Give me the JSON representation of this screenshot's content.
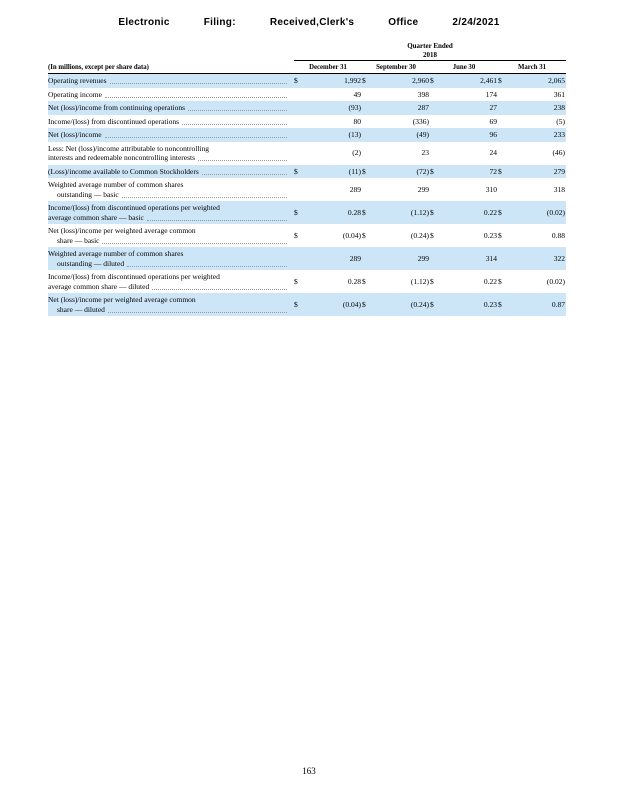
{
  "colors": {
    "row_shade": "#cde6f7",
    "rule": "#000000"
  },
  "stamp": {
    "parts": [
      "Electronic",
      "Filing:",
      "Received,Clerk's",
      "Office",
      "2/24/2021"
    ]
  },
  "table": {
    "title": "Quarter Ended",
    "year": "2018",
    "label_header": "(In millions, except per share data)",
    "columns": [
      "December 31",
      "September 30",
      "June 30",
      "March 31"
    ],
    "rows": [
      {
        "shaded": true,
        "dollar": true,
        "indent2": false,
        "lines": [
          "Operating revenues"
        ],
        "values": [
          "1,992",
          "2,960",
          "2,461",
          "2,065"
        ]
      },
      {
        "shaded": false,
        "dollar": false,
        "indent2": false,
        "lines": [
          "Operating income"
        ],
        "values": [
          "49",
          "398",
          "174",
          "361"
        ]
      },
      {
        "shaded": true,
        "dollar": false,
        "indent2": false,
        "lines": [
          "Net (loss)/income from continuing operations"
        ],
        "values": [
          "(93)",
          "287",
          "27",
          "238"
        ]
      },
      {
        "shaded": false,
        "dollar": false,
        "indent2": false,
        "lines": [
          "Income/(loss) from discontinued operations"
        ],
        "values": [
          "80",
          "(336)",
          "69",
          "(5)"
        ]
      },
      {
        "shaded": true,
        "dollar": false,
        "indent2": false,
        "lines": [
          "Net (loss)/income"
        ],
        "values": [
          "(13)",
          "(49)",
          "96",
          "233"
        ]
      },
      {
        "shaded": false,
        "dollar": false,
        "indent2": false,
        "lines": [
          "Less: Net (loss)/income attributable to noncontrolling",
          "interests and redeemable noncontrolling interests"
        ],
        "values": [
          "(2)",
          "23",
          "24",
          "(46)"
        ]
      },
      {
        "shaded": true,
        "dollar": true,
        "indent2": false,
        "lines": [
          "(Loss)/income available to Common Stockholders"
        ],
        "values": [
          "(11)",
          "(72)",
          "72",
          "279"
        ]
      },
      {
        "shaded": false,
        "dollar": false,
        "indent2": true,
        "lines": [
          "Weighted average number of common shares",
          "outstanding — basic"
        ],
        "values": [
          "289",
          "299",
          "310",
          "318"
        ]
      },
      {
        "shaded": true,
        "dollar": true,
        "indent2": false,
        "lines": [
          "Income/(loss) from discontinued operations per weighted",
          "average common share — basic"
        ],
        "values": [
          "0.28",
          "(1.12)",
          "0.22",
          "(0.02)"
        ]
      },
      {
        "shaded": false,
        "dollar": true,
        "indent2": true,
        "lines": [
          "Net (loss)/income per weighted average common",
          "share — basic"
        ],
        "values": [
          "(0.04)",
          "(0.24)",
          "0.23",
          "0.88"
        ]
      },
      {
        "shaded": true,
        "dollar": false,
        "indent2": true,
        "lines": [
          "Weighted average number of common shares",
          "outstanding — diluted"
        ],
        "values": [
          "289",
          "299",
          "314",
          "322"
        ]
      },
      {
        "shaded": false,
        "dollar": true,
        "indent2": false,
        "lines": [
          "Income/(loss) from discontinued operations per weighted",
          "average common share — diluted"
        ],
        "values": [
          "0.28",
          "(1.12)",
          "0.22",
          "(0.02)"
        ]
      },
      {
        "shaded": true,
        "dollar": true,
        "indent2": true,
        "lines": [
          "Net (loss)/income per weighted average common",
          "share — diluted"
        ],
        "values": [
          "(0.04)",
          "(0.24)",
          "0.23",
          "0.87"
        ]
      }
    ]
  },
  "page_number": "163"
}
